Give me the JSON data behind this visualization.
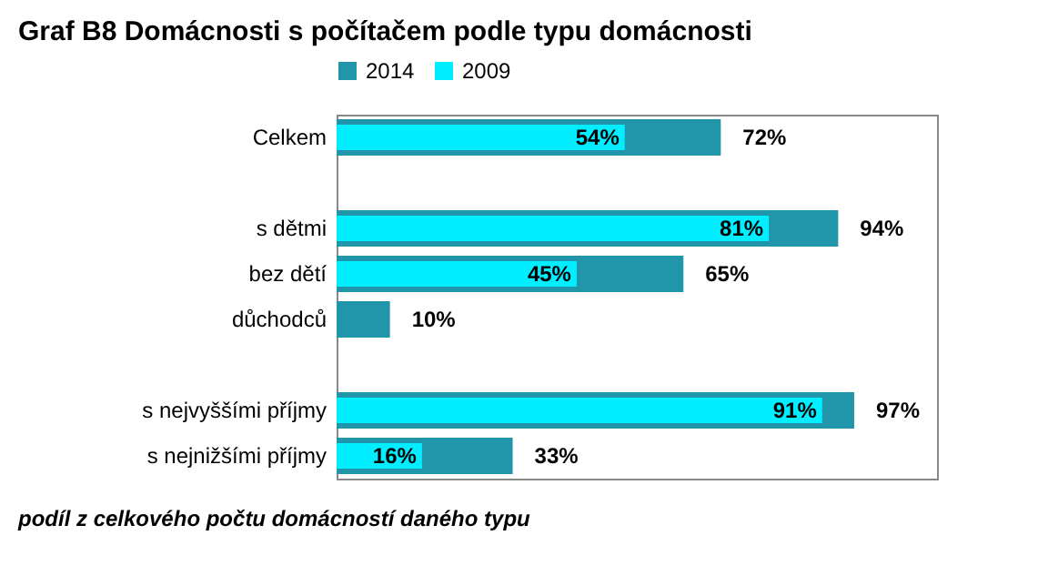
{
  "chart_data": {
    "type": "bar",
    "orientation": "horizontal",
    "title": "Graf B8 Domácnosti s počítačem podle typu domácnosti",
    "categories": [
      "Celkem",
      null,
      "s dětmi",
      "bez dětí",
      "důchodců",
      null,
      "s nejvyššími příjmy",
      "s nejnižšími příjmy"
    ],
    "series": [
      {
        "name": "2014",
        "color": "#2196aa",
        "values": [
          72,
          null,
          94,
          65,
          10,
          null,
          97,
          33
        ],
        "value_labels": [
          "72%",
          null,
          "94%",
          "65%",
          "10%",
          null,
          "97%",
          "33%"
        ]
      },
      {
        "name": "2009",
        "color": "#00eeff",
        "values": [
          54,
          null,
          81,
          45,
          null,
          null,
          91,
          16
        ],
        "value_labels": [
          "54%",
          null,
          "81%",
          "45%",
          null,
          null,
          "91%",
          "16%"
        ]
      }
    ],
    "legend": "top",
    "grid": false,
    "annotations": [
      "podíl z celkového počtu domácností daného typu"
    ]
  }
}
